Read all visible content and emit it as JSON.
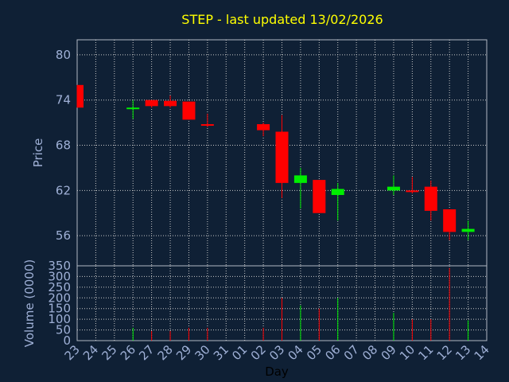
{
  "chart_data": {
    "type": "candlestick",
    "title": "STEP - last updated 13/02/2026",
    "xlabel": "Day",
    "price_panel": {
      "ylabel": "Price",
      "yticks": [
        56,
        62,
        68,
        74,
        80
      ],
      "ylim": [
        52,
        82
      ],
      "grid": true
    },
    "volume_panel": {
      "ylabel": "Volume (0000)",
      "yticks": [
        0,
        50,
        100,
        150,
        200,
        250,
        300,
        350
      ],
      "ylim": [
        0,
        350
      ],
      "grid": true
    },
    "x_tick_labels": [
      "23",
      "24",
      "25",
      "26",
      "27",
      "28",
      "29",
      "30",
      "31",
      "01",
      "02",
      "03",
      "04",
      "05",
      "06",
      "07",
      "08",
      "09",
      "10",
      "11",
      "12",
      "13",
      "14"
    ],
    "candles": [
      {
        "day": "23",
        "open": 76.0,
        "high": 76.0,
        "low": 73.0,
        "close": 73.0,
        "volume": 0
      },
      {
        "day": "26",
        "open": 73.0,
        "high": 74.0,
        "low": 71.5,
        "close": 73.0,
        "volume": 60
      },
      {
        "day": "27",
        "open": 74.0,
        "high": 74.0,
        "low": 73.0,
        "close": 73.2,
        "volume": 45
      },
      {
        "day": "28",
        "open": 73.9,
        "high": 74.6,
        "low": 73.0,
        "close": 73.2,
        "volume": 45
      },
      {
        "day": "29",
        "open": 73.8,
        "high": 73.8,
        "low": 71.4,
        "close": 71.4,
        "volume": 60
      },
      {
        "day": "30",
        "open": 70.8,
        "high": 72.2,
        "low": 70.4,
        "close": 70.6,
        "volume": 60
      },
      {
        "day": "02",
        "open": 70.8,
        "high": 71.0,
        "low": 69.2,
        "close": 70.0,
        "volume": 60
      },
      {
        "day": "03",
        "open": 69.8,
        "high": 72.0,
        "low": 61.0,
        "close": 63.0,
        "volume": 200
      },
      {
        "day": "04",
        "open": 63.0,
        "high": 65.0,
        "low": 59.6,
        "close": 64.0,
        "volume": 165
      },
      {
        "day": "05",
        "open": 63.4,
        "high": 63.4,
        "low": 59.0,
        "close": 59.0,
        "volume": 150
      },
      {
        "day": "06",
        "open": 61.4,
        "high": 63.0,
        "low": 58.0,
        "close": 62.2,
        "volume": 200
      },
      {
        "day": "09",
        "open": 62.0,
        "high": 64.0,
        "low": 61.4,
        "close": 62.5,
        "volume": 130
      },
      {
        "day": "10",
        "open": 62.0,
        "high": 63.8,
        "low": 61.6,
        "close": 61.9,
        "volume": 100
      },
      {
        "day": "11",
        "open": 62.5,
        "high": 63.3,
        "low": 58.0,
        "close": 59.3,
        "volume": 100
      },
      {
        "day": "12",
        "open": 59.5,
        "high": 59.5,
        "low": 55.4,
        "close": 56.5,
        "volume": 340
      },
      {
        "day": "13",
        "open": 56.5,
        "high": 58.0,
        "low": 55.4,
        "close": 56.9,
        "volume": 95
      }
    ],
    "colors": {
      "background": "#0f2035",
      "panel_border": "#b0b8c4",
      "grid": "#c8c8c8",
      "up": "#00ee00",
      "down": "#ff0000",
      "text": "#9fb0d6",
      "title": "#ffff00"
    }
  }
}
